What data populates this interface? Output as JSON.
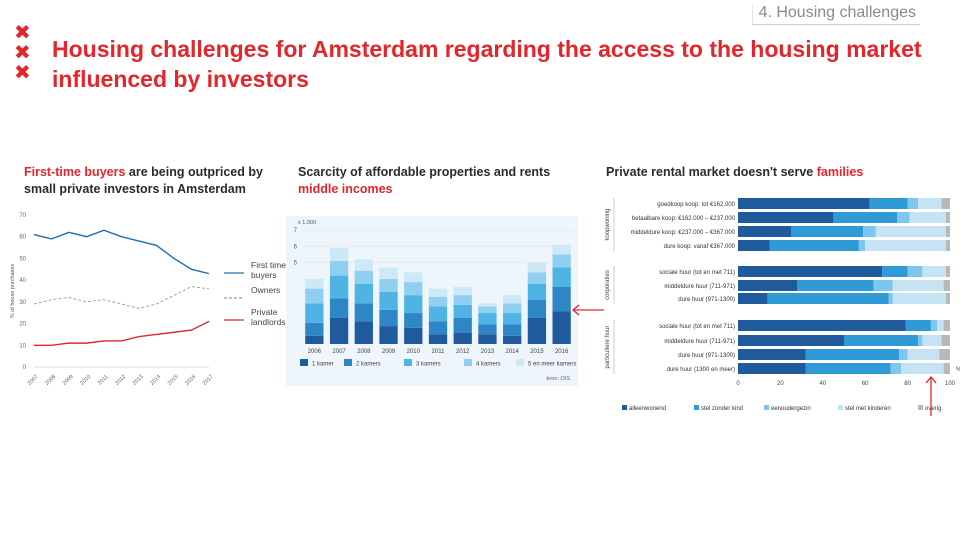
{
  "header": {
    "section_tag": "4. Housing challenges",
    "title": "Housing challenges for Amsterdam regarding the access to the housing market influenced by investors",
    "logo_icon": "xxx-cross-icon"
  },
  "panel1": {
    "title_highlight": "First-time buyers",
    "title_rest": " are being outpriced by small private investors in Amsterdam"
  },
  "panel2": {
    "title_line1": "Scarcity of affordable properties and rents",
    "title_highlight": "middle incomes"
  },
  "panel3": {
    "title_rest": "Private rental market doesn't serve ",
    "title_highlight": "families"
  },
  "chart_data": [
    {
      "type": "line",
      "ylabel": "% of house purchases",
      "ylim": [
        0,
        70
      ],
      "yticks": [
        0,
        10,
        20,
        30,
        40,
        50,
        60,
        70
      ],
      "x": [
        "2007",
        "2008",
        "2009",
        "2010",
        "2011",
        "2012",
        "2013",
        "2014",
        "2015",
        "2016",
        "2017"
      ],
      "series": [
        {
          "name": "First time buyers",
          "color": "#1f6fb4",
          "style": "solid",
          "values": [
            61,
            59,
            62,
            60,
            63,
            60,
            58,
            56,
            50,
            45,
            43
          ]
        },
        {
          "name": "Owners",
          "color": "#9a9a9a",
          "style": "dashed",
          "values": [
            29,
            31,
            32,
            30,
            31,
            29,
            27,
            29,
            33,
            37,
            36
          ]
        },
        {
          "name": "Private landlords",
          "color": "#e3262b",
          "style": "solid",
          "values": [
            10,
            10,
            11,
            11,
            12,
            12,
            14,
            15,
            16,
            17,
            21
          ]
        }
      ]
    },
    {
      "type": "bar",
      "stacked": true,
      "yunit": "x 1.000",
      "ylim": [
        0,
        7
      ],
      "yticks": [
        5,
        6,
        7
      ],
      "categories": [
        "2006",
        "2007",
        "2008",
        "2009",
        "2010",
        "2011",
        "2012",
        "2013",
        "2014",
        "2015",
        "2016"
      ],
      "series": [
        {
          "name": "1 kamer",
          "color": "#1f5b9c",
          "values": [
            0.5,
            1.6,
            1.4,
            1.1,
            1.0,
            0.6,
            0.7,
            0.6,
            0.5,
            1.6,
            2.0
          ]
        },
        {
          "name": "2 kamers",
          "color": "#2f86c6",
          "values": [
            0.8,
            1.2,
            1.1,
            1.0,
            0.9,
            0.8,
            0.9,
            0.6,
            0.7,
            1.1,
            1.5
          ]
        },
        {
          "name": "3 kamers",
          "color": "#4fb4e4",
          "values": [
            1.2,
            1.4,
            1.2,
            1.1,
            1.1,
            0.9,
            0.8,
            0.7,
            0.7,
            1.0,
            1.2
          ]
        },
        {
          "name": "4 kamers",
          "color": "#8fd0f0",
          "values": [
            0.9,
            0.9,
            0.8,
            0.8,
            0.8,
            0.6,
            0.6,
            0.4,
            0.6,
            0.7,
            0.8
          ]
        },
        {
          "name": "5 en meer kamers",
          "color": "#cde9f7",
          "values": [
            0.6,
            0.8,
            0.7,
            0.7,
            0.6,
            0.5,
            0.5,
            0.2,
            0.5,
            0.6,
            0.6
          ]
        }
      ],
      "source": "bron: OIS"
    },
    {
      "type": "bar",
      "stacked": true,
      "orientation": "horizontal",
      "xlim": [
        0,
        100
      ],
      "xticks": [
        0,
        20,
        40,
        60,
        80,
        100
      ],
      "groups": [
        {
          "label": "koopwoning",
          "rows": [
            "goedkoop koop: tot €162.000",
            "betaalbare koop: €162.000 – €237.000",
            "middeldure koop: €237.000 – €367.000",
            "dure koop: vanaf €367.000"
          ]
        },
        {
          "label": "corporaties",
          "rows": [
            "sociale huur (tot en met 711)",
            "middeldure huur (711-971)",
            "dure huur (971-1300)"
          ]
        },
        {
          "label": "particuliere huur",
          "rows": [
            "sociale huur (tot en met 711)",
            "middeldure huur (711-971)",
            "dure huur (971-1300)",
            "dure huur (1300 en meer)"
          ]
        }
      ],
      "series": [
        {
          "name": "alleenwonend",
          "color": "#1f5b9c",
          "values": [
            62,
            45,
            25,
            15,
            68,
            28,
            14,
            79,
            50,
            32,
            32
          ]
        },
        {
          "name": "stel zonder kind",
          "color": "#2f9ad6",
          "values": [
            18,
            30,
            34,
            42,
            12,
            36,
            57,
            12,
            35,
            44,
            40
          ]
        },
        {
          "name": "eenoudergezin",
          "color": "#7cc7ee",
          "values": [
            5,
            6,
            6,
            3,
            7,
            9,
            2,
            3,
            2,
            4,
            5
          ]
        },
        {
          "name": "stel met kinderen",
          "color": "#c6e3f4",
          "values": [
            11,
            17,
            33,
            38,
            11,
            24,
            25,
            3,
            9,
            15,
            20
          ]
        },
        {
          "name": "overig",
          "color": "#b9b9b9",
          "values": [
            4,
            2,
            2,
            2,
            2,
            3,
            2,
            3,
            4,
            5,
            3
          ]
        }
      ],
      "xunit": "%"
    }
  ]
}
